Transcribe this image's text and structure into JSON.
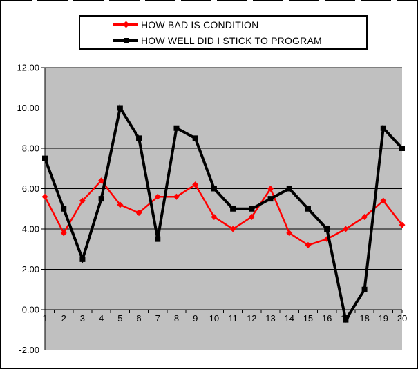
{
  "colors": {
    "window_bg": "#ffffff",
    "window_border": "#000000",
    "legend_bg": "#ffffff",
    "legend_border": "#000000"
  },
  "chart_data": {
    "type": "line",
    "title": "",
    "xlabel": "",
    "ylabel": "",
    "grid": true,
    "plot_bg_color": "#c0c0c0",
    "axis_color": "#000000",
    "legend_position": "top",
    "ylim": [
      -2,
      12
    ],
    "ytick_step": 2,
    "ytick_labels": [
      "12.00",
      "10.00",
      "8.00",
      "6.00",
      "4.00",
      "2.00",
      "0.00",
      "-2.00"
    ],
    "categories": [
      "1",
      "2",
      "3",
      "4",
      "5",
      "6",
      "7",
      "8",
      "9",
      "10",
      "11",
      "12",
      "13",
      "14",
      "15",
      "16",
      "17",
      "18",
      "19",
      "20"
    ],
    "series": [
      {
        "name": "HOW BAD IS CONDITION",
        "color": "#ff0000",
        "marker": "diamond",
        "line_width": 2.5,
        "values": [
          5.6,
          3.8,
          5.4,
          6.4,
          5.2,
          4.8,
          5.6,
          5.6,
          6.2,
          4.6,
          4.0,
          4.6,
          6.0,
          3.8,
          3.2,
          3.5,
          4.0,
          4.6,
          5.4,
          4.2
        ]
      },
      {
        "name": "HOW WELL DID I STICK TO PROGRAM",
        "color": "#000000",
        "marker": "square",
        "line_width": 4,
        "values": [
          7.5,
          5.0,
          2.5,
          5.5,
          10.0,
          8.5,
          3.5,
          9.0,
          8.5,
          6.0,
          5.0,
          5.0,
          5.5,
          6.0,
          5.0,
          4.0,
          -0.5,
          1.0,
          9.0,
          8.0
        ]
      }
    ]
  }
}
